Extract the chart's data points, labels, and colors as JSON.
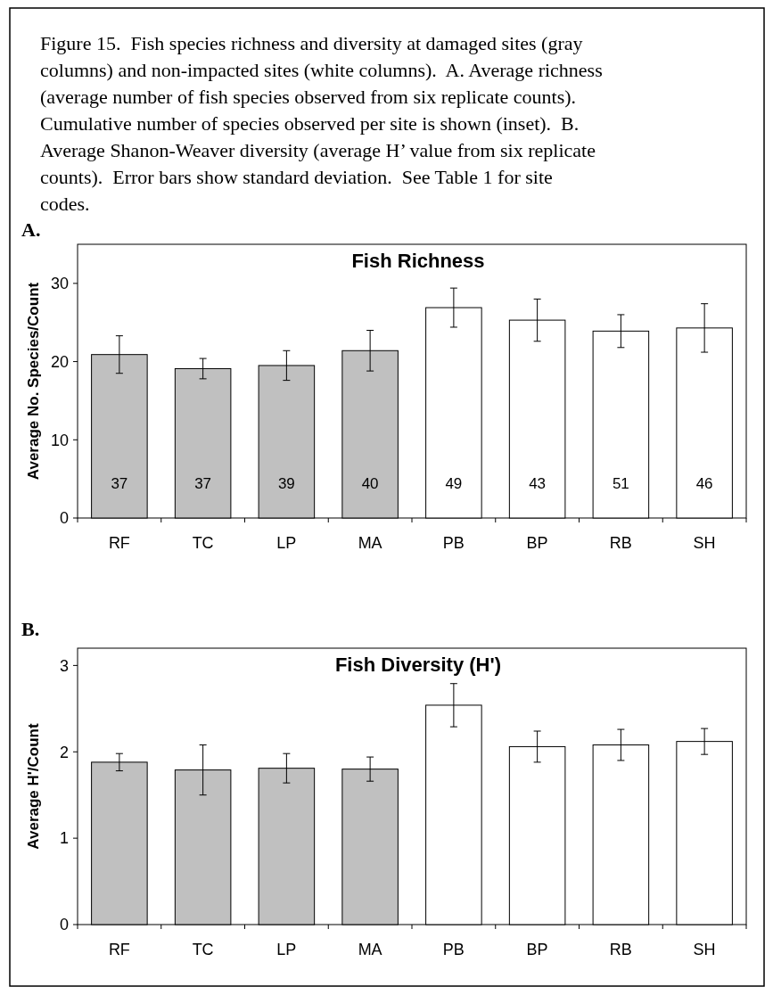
{
  "chart_data": [
    {
      "type": "bar",
      "title": "Fish Richness",
      "ylabel": "Average No. Species/Count",
      "categories": [
        "RF",
        "TC",
        "LP",
        "MA",
        "PB",
        "BP",
        "RB",
        "SH"
      ],
      "values": [
        20.9,
        19.1,
        19.5,
        21.4,
        26.9,
        25.3,
        23.9,
        24.3
      ],
      "errors": [
        2.4,
        1.3,
        1.9,
        2.6,
        2.5,
        2.7,
        2.1,
        3.1
      ],
      "colors": [
        "#c0c0c0",
        "#c0c0c0",
        "#c0c0c0",
        "#c0c0c0",
        "#ffffff",
        "#ffffff",
        "#ffffff",
        "#ffffff"
      ],
      "ylim": [
        0,
        35
      ],
      "yticks": [
        0,
        10,
        20,
        30
      ],
      "annotations": [
        "Figure 15.  Fish species richness and diversity at damaged sites (gray columns) and non-impacted sites (white columns).  A. Average richness (average number of fish species observed from six replicate counts).  Cumulative number of species observed per site is shown (inset).  B. Average Shanon-Weaver diversity (average H’ value from six replicate counts).  Error bars show standard deviation.  See Table 1 for site codes.",
        "A.",
        "37",
        "37",
        "39",
        "40",
        "49",
        "43",
        "51",
        "46"
      ]
    },
    {
      "type": "bar",
      "title": "Fish Diversity (H')",
      "ylabel": "Average H'/Count",
      "categories": [
        "RF",
        "TC",
        "LP",
        "MA",
        "PB",
        "BP",
        "RB",
        "SH"
      ],
      "values": [
        1.88,
        1.79,
        1.81,
        1.8,
        2.54,
        2.06,
        2.08,
        2.12
      ],
      "errors": [
        0.1,
        0.29,
        0.17,
        0.14,
        0.25,
        0.18,
        0.18,
        0.15
      ],
      "colors": [
        "#c0c0c0",
        "#c0c0c0",
        "#c0c0c0",
        "#c0c0c0",
        "#ffffff",
        "#ffffff",
        "#ffffff",
        "#ffffff"
      ],
      "ylim": [
        0,
        3.2
      ],
      "yticks": [
        0,
        1,
        2,
        3
      ],
      "annotations": [
        "B."
      ]
    }
  ]
}
